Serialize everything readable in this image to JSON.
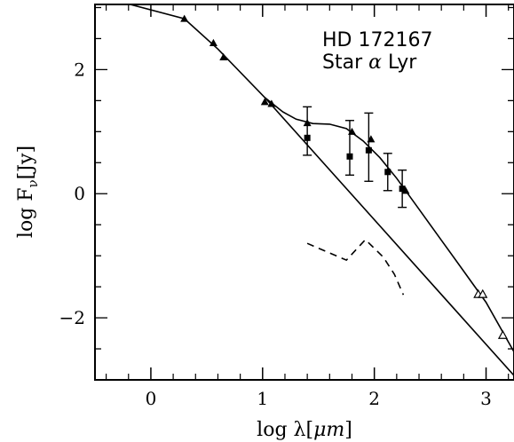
{
  "chart_data": {
    "type": "scatter",
    "title": "",
    "xlabel": "log λ[μm]",
    "ylabel": "log F_ν[Jy]",
    "xlim": [
      -0.5,
      3.25
    ],
    "ylim": [
      -3.0,
      3.05
    ],
    "xticks": [
      {
        "value": 0,
        "label": "0"
      },
      {
        "value": 1,
        "label": "1"
      },
      {
        "value": 2,
        "label": "2"
      },
      {
        "value": 3,
        "label": "3"
      }
    ],
    "yticks": [
      {
        "value": 2,
        "label": "2"
      },
      {
        "value": 0,
        "label": "0"
      },
      {
        "value": -2,
        "label": "−2"
      }
    ],
    "xlabel_parts": {
      "pre": "log λ[",
      "unit": "μm",
      "post": "]"
    },
    "ylabel_parts": {
      "pre": "log F",
      "sub": "ν",
      "post": "[Jy]"
    },
    "annotation": {
      "line1": "HD 172167",
      "line2_pre": "Star ",
      "line2_greek": "α",
      "line2_post": " Lyr"
    },
    "series": [
      {
        "marker": "filled-triangle",
        "points": [
          [
            0.3,
            2.82
          ],
          [
            0.56,
            2.43
          ],
          [
            0.65,
            2.2
          ],
          [
            1.02,
            1.48
          ],
          [
            1.08,
            1.45
          ],
          [
            1.4,
            1.14
          ],
          [
            1.8,
            1.0
          ],
          [
            1.97,
            0.88
          ],
          [
            2.28,
            0.05
          ]
        ]
      },
      {
        "marker": "filled-square",
        "errorbars": true,
        "points": [
          {
            "x": 1.4,
            "y": 0.9,
            "ylow": 0.62,
            "yhigh": 1.4
          },
          {
            "x": 1.78,
            "y": 0.6,
            "ylow": 0.3,
            "yhigh": 1.18
          },
          {
            "x": 1.95,
            "y": 0.7,
            "ylow": 0.2,
            "yhigh": 1.3
          },
          {
            "x": 2.12,
            "y": 0.35,
            "ylow": 0.05,
            "yhigh": 0.65
          },
          {
            "x": 2.25,
            "y": 0.08,
            "ylow": -0.22,
            "yhigh": 0.38
          }
        ]
      },
      {
        "marker": "open-triangle",
        "points": [
          [
            2.93,
            -1.62
          ],
          [
            2.97,
            -1.62
          ],
          [
            3.15,
            -2.28
          ]
        ]
      }
    ],
    "lines": [
      {
        "style": "solid",
        "points": [
          [
            -0.5,
            3.2
          ],
          [
            0.3,
            2.82
          ],
          [
            0.6,
            2.33
          ],
          [
            1.02,
            1.55
          ],
          [
            1.18,
            1.32
          ],
          [
            1.3,
            1.2
          ],
          [
            1.45,
            1.13
          ],
          [
            1.6,
            1.12
          ],
          [
            1.75,
            1.05
          ],
          [
            1.9,
            0.85
          ],
          [
            2.05,
            0.58
          ],
          [
            2.2,
            0.25
          ],
          [
            2.4,
            -0.25
          ],
          [
            2.6,
            -0.75
          ],
          [
            2.8,
            -1.25
          ],
          [
            3.0,
            -1.75
          ],
          [
            3.25,
            -2.55
          ]
        ]
      },
      {
        "style": "solid",
        "points": [
          [
            1.02,
            1.55
          ],
          [
            3.25,
            -2.93
          ]
        ]
      },
      {
        "style": "dashed",
        "points": [
          [
            1.4,
            -0.8
          ],
          [
            1.75,
            -1.07
          ],
          [
            1.92,
            -0.74
          ],
          [
            2.08,
            -1.02
          ],
          [
            2.18,
            -1.3
          ],
          [
            2.26,
            -1.63
          ]
        ]
      }
    ]
  }
}
